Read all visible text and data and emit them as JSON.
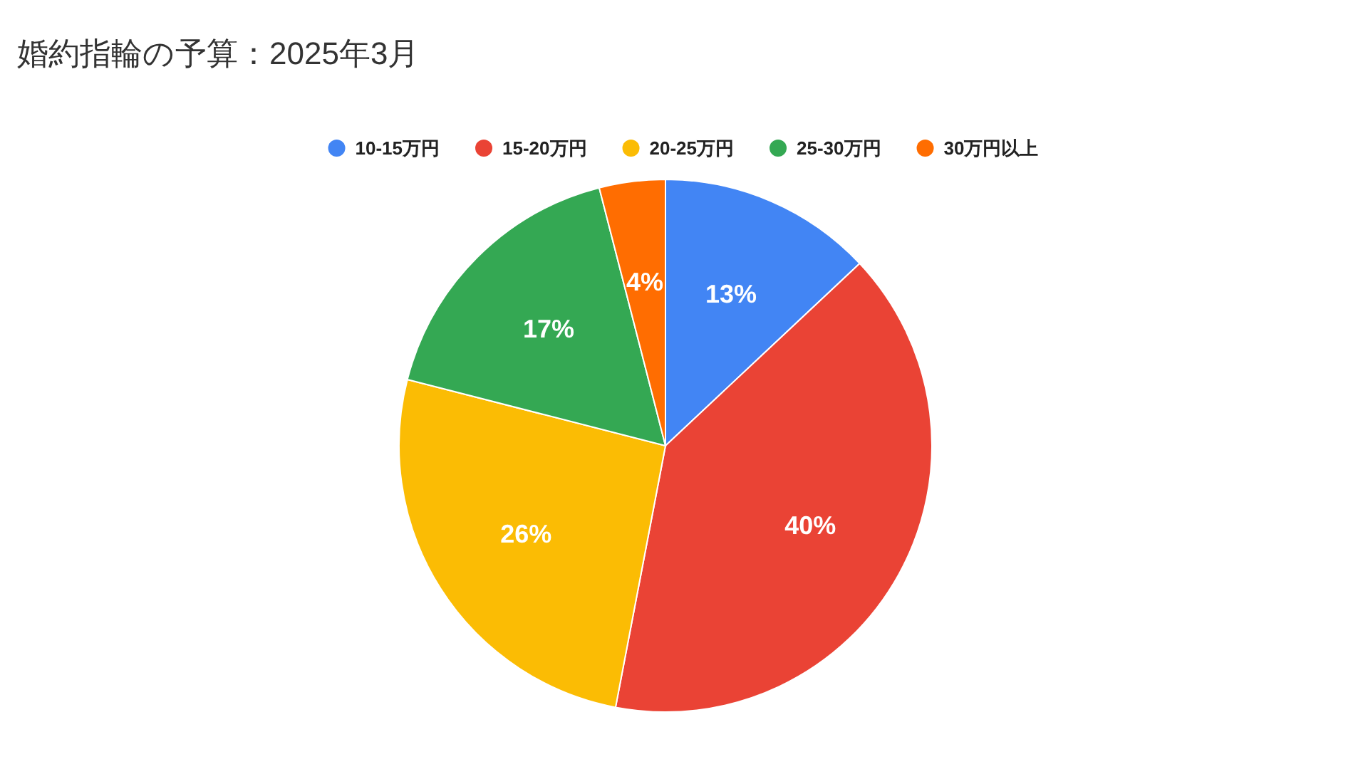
{
  "chart_data": {
    "type": "pie",
    "title": "婚約指輪の予算：2025年3月",
    "categories": [
      "10-15万円",
      "15-20万円",
      "20-25万円",
      "25-30万円",
      "30万円以上"
    ],
    "values": [
      13,
      40,
      26,
      17,
      4
    ],
    "colors": [
      "#4285f4",
      "#ea4335",
      "#fbbc04",
      "#34a853",
      "#ff6d01"
    ],
    "value_labels": [
      "13%",
      "40%",
      "26%",
      "17%",
      "4%"
    ],
    "legend": "top"
  }
}
